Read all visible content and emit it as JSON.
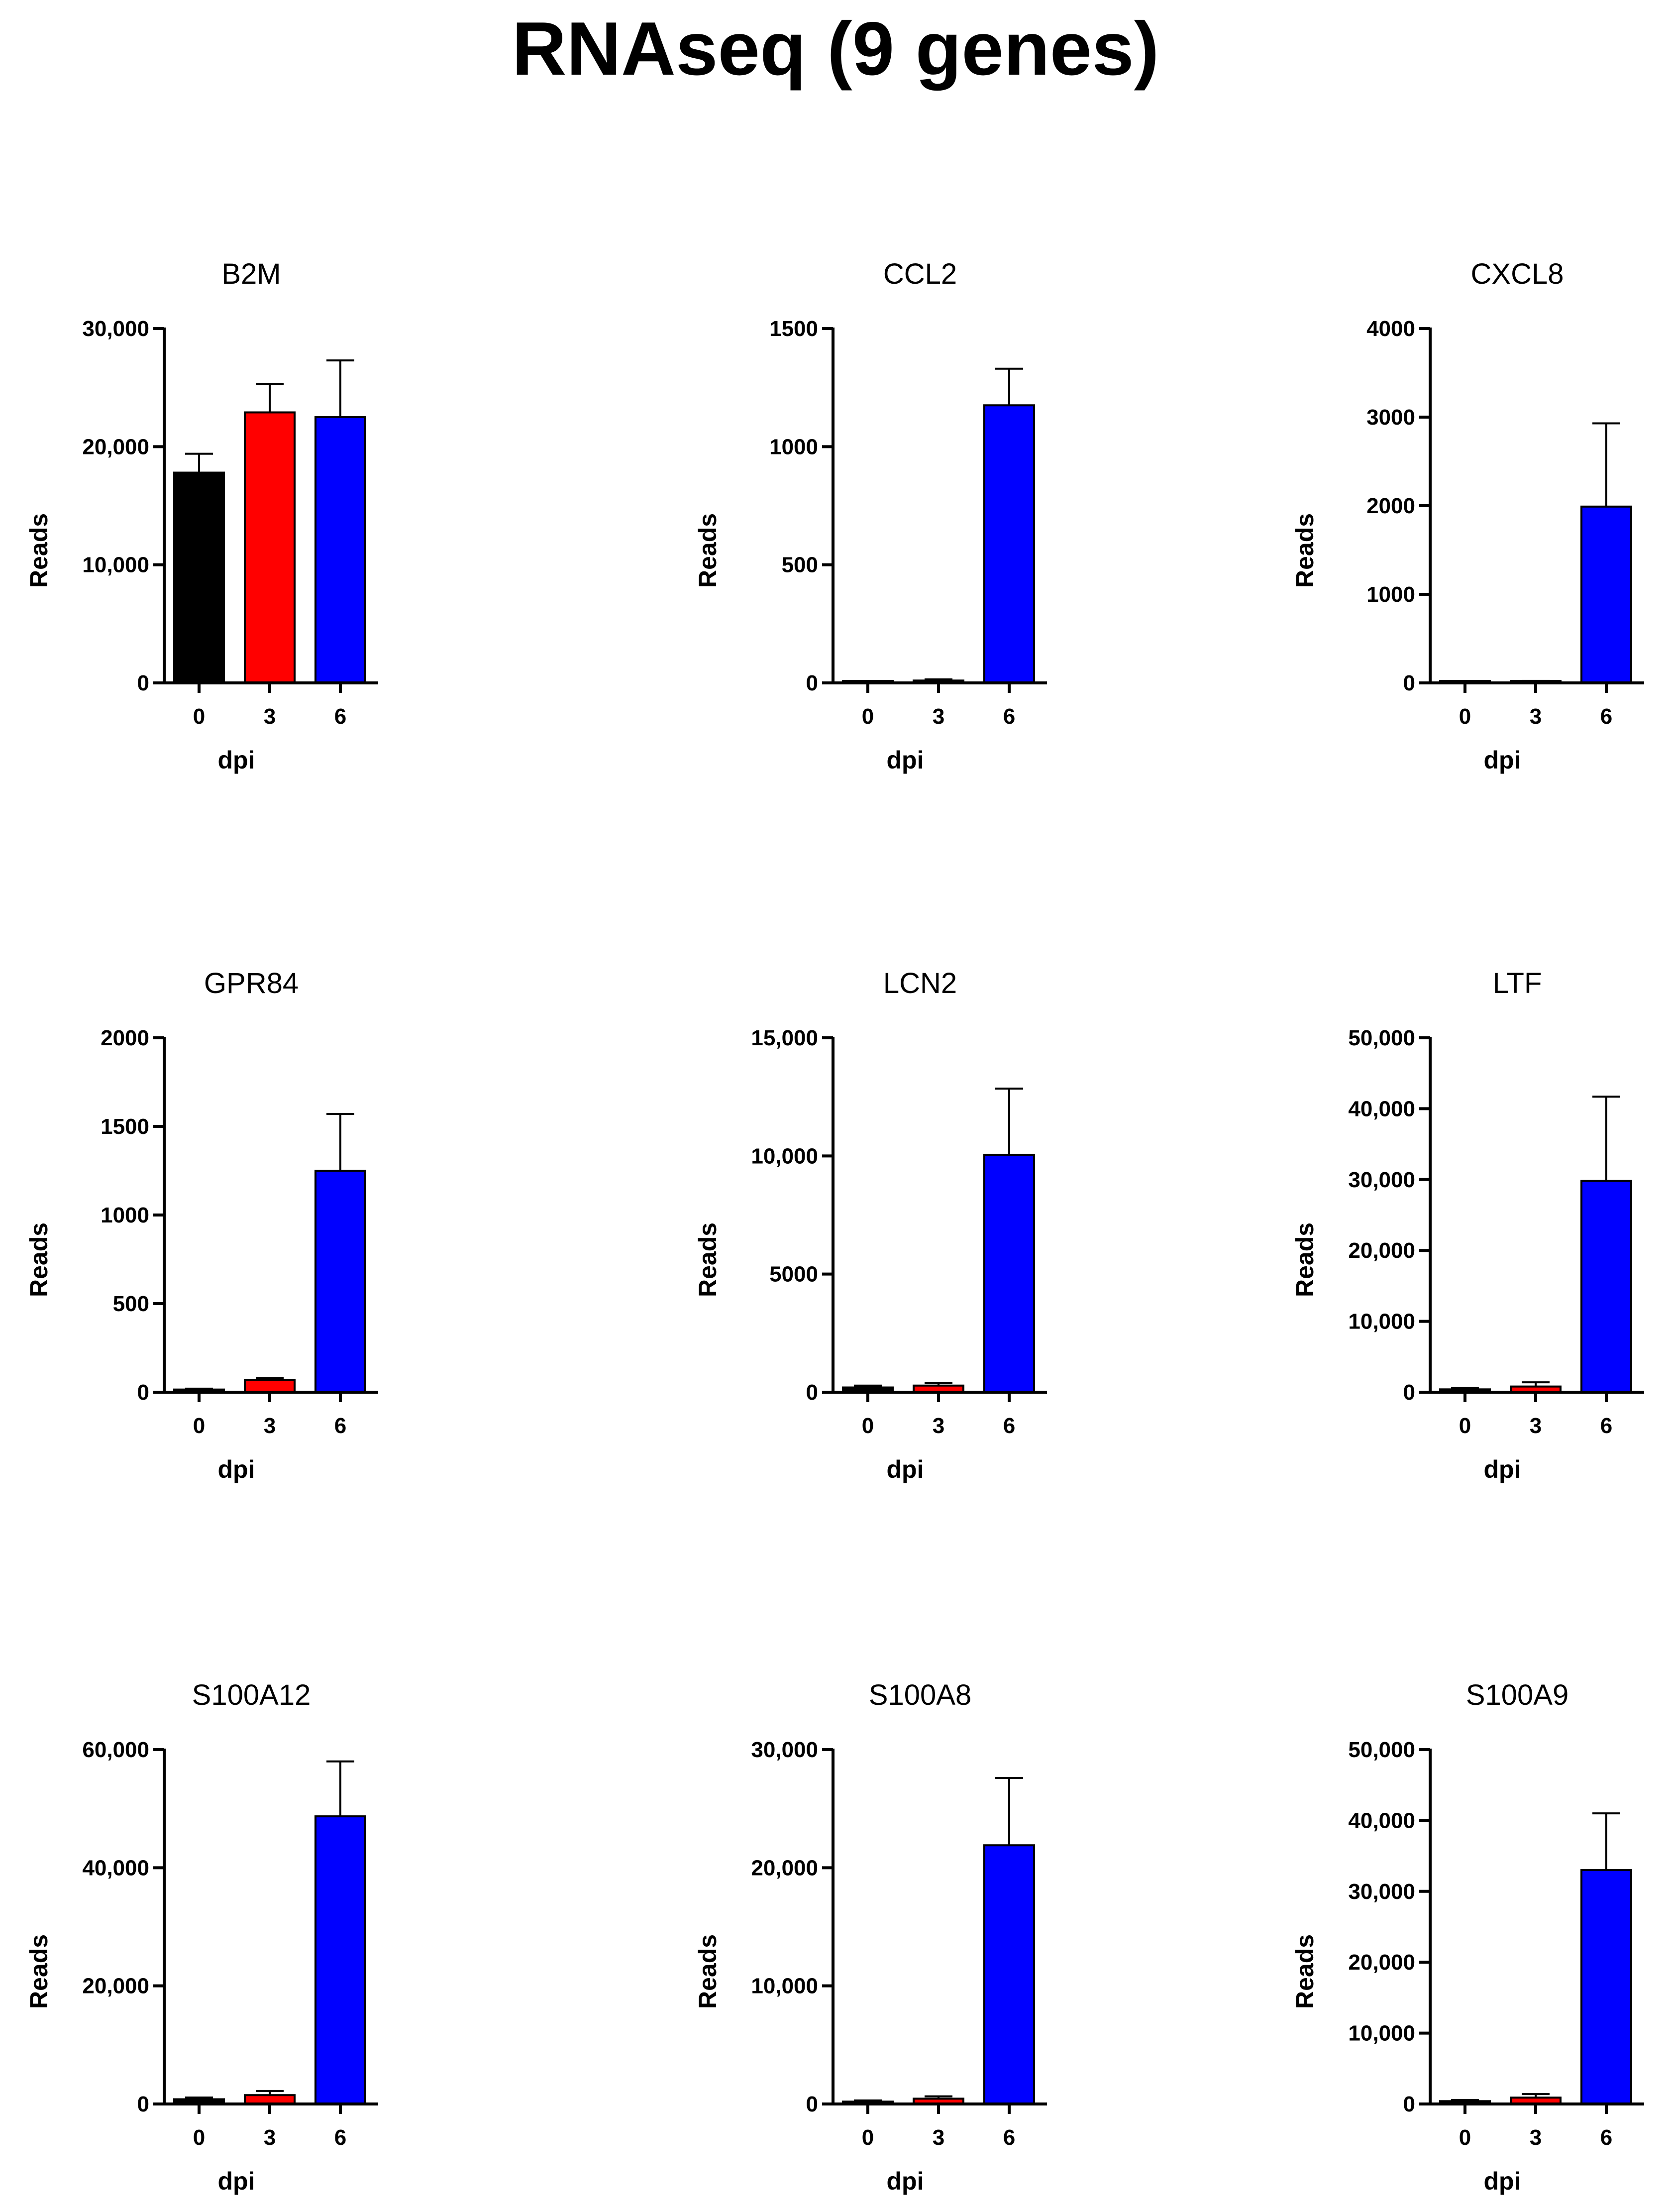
{
  "title": "RNAseq (9 genes)",
  "chart_data": [
    {
      "type": "bar",
      "title": "B2M",
      "xlabel": "dpi",
      "ylabel": "Reads",
      "categories": [
        "0",
        "3",
        "6"
      ],
      "values": [
        17800,
        22900,
        22500
      ],
      "errors": [
        1600,
        2400,
        4800
      ],
      "colors": [
        "#000000",
        "#ff0000",
        "#0000ff"
      ],
      "ylim": [
        0,
        30000
      ],
      "yticks": [
        0,
        10000,
        20000,
        30000
      ],
      "ytick_labels": [
        "0",
        "10,000",
        "20,000",
        "30,000"
      ]
    },
    {
      "type": "bar",
      "title": "CCL2",
      "xlabel": "dpi",
      "ylabel": "Reads",
      "categories": [
        "0",
        "3",
        "6"
      ],
      "values": [
        5,
        10,
        1175
      ],
      "errors": [
        3,
        5,
        155
      ],
      "colors": [
        "#000000",
        "#ff0000",
        "#0000ff"
      ],
      "ylim": [
        0,
        1500
      ],
      "yticks": [
        0,
        500,
        1000,
        1500
      ],
      "ytick_labels": [
        "0",
        "500",
        "1000",
        "1500"
      ]
    },
    {
      "type": "bar",
      "title": "CXCL8",
      "xlabel": "dpi",
      "ylabel": "Reads",
      "categories": [
        "0",
        "3",
        "6"
      ],
      "values": [
        5,
        15,
        1990
      ],
      "errors": [
        3,
        8,
        940
      ],
      "colors": [
        "#000000",
        "#ff0000",
        "#0000ff"
      ],
      "ylim": [
        0,
        4000
      ],
      "yticks": [
        0,
        1000,
        2000,
        3000,
        4000
      ],
      "ytick_labels": [
        "0",
        "1000",
        "2000",
        "3000",
        "4000"
      ]
    },
    {
      "type": "bar",
      "title": "GPR84",
      "xlabel": "dpi",
      "ylabel": "Reads",
      "categories": [
        "0",
        "3",
        "6"
      ],
      "values": [
        15,
        70,
        1250
      ],
      "errors": [
        5,
        10,
        320
      ],
      "colors": [
        "#000000",
        "#ff0000",
        "#0000ff"
      ],
      "ylim": [
        0,
        2000
      ],
      "yticks": [
        0,
        500,
        1000,
        1500,
        2000
      ],
      "ytick_labels": [
        "0",
        "500",
        "1000",
        "1500",
        "2000"
      ]
    },
    {
      "type": "bar",
      "title": "LCN2",
      "xlabel": "dpi",
      "ylabel": "Reads",
      "categories": [
        "0",
        "3",
        "6"
      ],
      "values": [
        200,
        280,
        10050
      ],
      "errors": [
        80,
        100,
        2800
      ],
      "colors": [
        "#000000",
        "#ff0000",
        "#0000ff"
      ],
      "ylim": [
        0,
        15000
      ],
      "yticks": [
        0,
        5000,
        10000,
        15000
      ],
      "ytick_labels": [
        "0",
        "5000",
        "10,000",
        "15,000"
      ]
    },
    {
      "type": "bar",
      "title": "LTF",
      "xlabel": "dpi",
      "ylabel": "Reads",
      "categories": [
        "0",
        "3",
        "6"
      ],
      "values": [
        400,
        800,
        29800
      ],
      "errors": [
        200,
        600,
        11900
      ],
      "colors": [
        "#000000",
        "#ff0000",
        "#0000ff"
      ],
      "ylim": [
        0,
        50000
      ],
      "yticks": [
        0,
        10000,
        20000,
        30000,
        40000,
        50000
      ],
      "ytick_labels": [
        "0",
        "10,000",
        "20,000",
        "30,000",
        "40,000",
        "50,000"
      ]
    },
    {
      "type": "bar",
      "title": "S100A12",
      "xlabel": "dpi",
      "ylabel": "Reads",
      "categories": [
        "0",
        "3",
        "6"
      ],
      "values": [
        800,
        1500,
        48700
      ],
      "errors": [
        300,
        700,
        9300
      ],
      "colors": [
        "#000000",
        "#ff0000",
        "#0000ff"
      ],
      "ylim": [
        0,
        60000
      ],
      "yticks": [
        0,
        20000,
        40000,
        60000
      ],
      "ytick_labels": [
        "0",
        "20,000",
        "40,000",
        "60,000"
      ]
    },
    {
      "type": "bar",
      "title": "S100A8",
      "xlabel": "dpi",
      "ylabel": "Reads",
      "categories": [
        "0",
        "3",
        "6"
      ],
      "values": [
        200,
        450,
        21900
      ],
      "errors": [
        100,
        200,
        5700
      ],
      "colors": [
        "#000000",
        "#ff0000",
        "#0000ff"
      ],
      "ylim": [
        0,
        30000
      ],
      "yticks": [
        0,
        10000,
        20000,
        30000
      ],
      "ytick_labels": [
        "0",
        "10,000",
        "20,000",
        "30,000"
      ]
    },
    {
      "type": "bar",
      "title": "S100A9",
      "xlabel": "dpi",
      "ylabel": "Reads",
      "categories": [
        "0",
        "3",
        "6"
      ],
      "values": [
        400,
        900,
        33000
      ],
      "errors": [
        150,
        500,
        8000
      ],
      "colors": [
        "#000000",
        "#ff0000",
        "#0000ff"
      ],
      "ylim": [
        0,
        50000
      ],
      "yticks": [
        0,
        10000,
        20000,
        30000,
        40000,
        50000
      ],
      "ytick_labels": [
        "0",
        "10,000",
        "20,000",
        "30,000",
        "40,000",
        "50,000"
      ]
    }
  ]
}
